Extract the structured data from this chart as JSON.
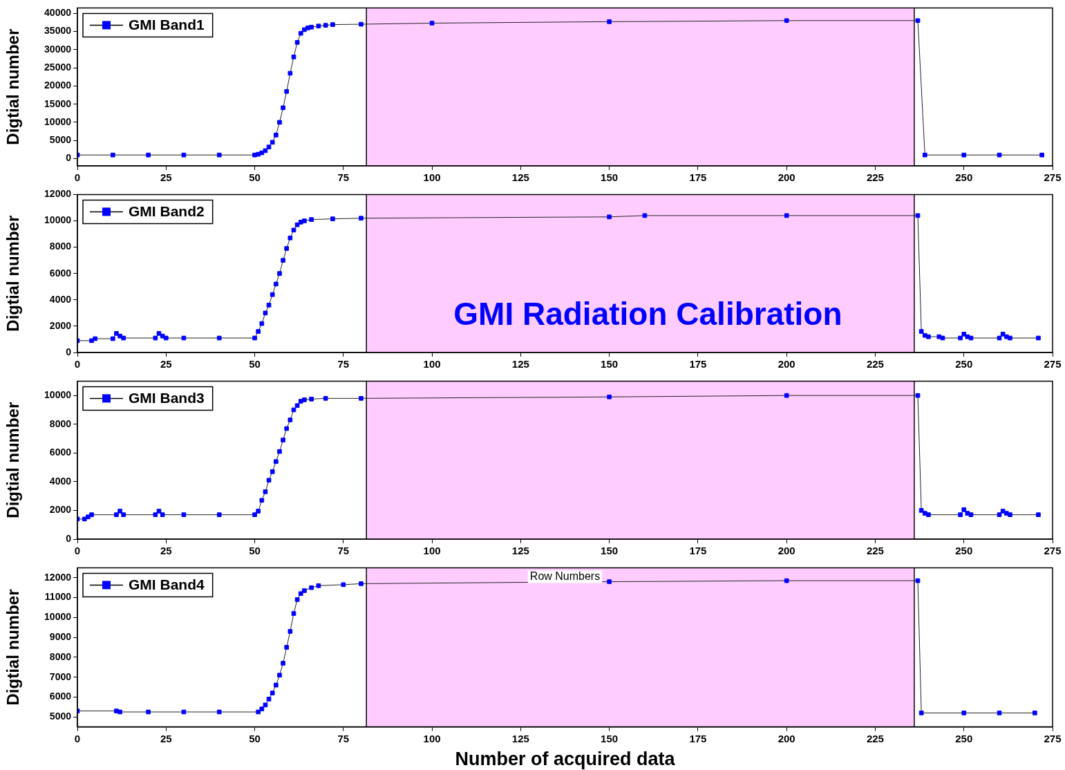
{
  "chart_data": [
    {
      "type": "line",
      "ylabel": "Digtial number",
      "xlim": [
        0,
        275
      ],
      "xticks": [
        0,
        25,
        50,
        75,
        100,
        125,
        150,
        175,
        200,
        225,
        250,
        275
      ],
      "ylim": [
        -2000,
        41500
      ],
      "yticks": [
        0,
        5000,
        10000,
        15000,
        20000,
        25000,
        30000,
        35000,
        40000
      ],
      "legend": "top left",
      "marker": "square",
      "line_style": "solid",
      "grid": false,
      "bands": [
        {
          "axis": "x",
          "from": 81.5,
          "to": 236,
          "color": "#ff66ff"
        }
      ],
      "ref_lines": [
        {
          "axis": "x",
          "value": 81.5,
          "color": "#000000"
        },
        {
          "axis": "x",
          "value": 236,
          "color": "#000000"
        }
      ],
      "series": [
        {
          "name": "GMI Band1",
          "color": "#0000ff",
          "x": [
            0,
            10,
            20,
            30,
            40,
            50,
            51,
            52,
            53,
            54,
            55,
            56,
            57,
            58,
            59,
            60,
            61,
            62,
            63,
            64,
            65,
            66,
            68,
            70,
            72,
            80,
            100,
            150,
            200,
            237,
            239,
            250,
            260,
            272
          ],
          "values": [
            1000,
            1000,
            1000,
            1000,
            1000,
            1000,
            1200,
            1600,
            2200,
            3200,
            4500,
            6500,
            10000,
            14000,
            18500,
            23500,
            28000,
            32000,
            34500,
            35500,
            36000,
            36200,
            36500,
            36700,
            36900,
            37000,
            37300,
            37700,
            38000,
            38000,
            1000,
            1000,
            1000,
            1000
          ]
        }
      ]
    },
    {
      "type": "line",
      "ylabel": "Digtial number",
      "xlim": [
        0,
        275
      ],
      "xticks": [
        0,
        25,
        50,
        75,
        100,
        125,
        150,
        175,
        200,
        225,
        250,
        275
      ],
      "ylim": [
        0,
        12000
      ],
      "yticks": [
        0,
        2000,
        4000,
        6000,
        8000,
        10000,
        12000
      ],
      "legend": "top left",
      "marker": "square",
      "line_style": "solid",
      "grid": false,
      "bands": [
        {
          "axis": "x",
          "from": 81.5,
          "to": 236,
          "color": "#ff66ff"
        }
      ],
      "ref_lines": [
        {
          "axis": "x",
          "value": 81.5,
          "color": "#000000"
        },
        {
          "axis": "x",
          "value": 236,
          "color": "#000000"
        }
      ],
      "annotations": [
        "GMI Radiation Calibration"
      ],
      "series": [
        {
          "name": "GMI Band2",
          "color": "#0000ff",
          "x": [
            0,
            4,
            5,
            10,
            11,
            12,
            13,
            22,
            23,
            24,
            25,
            30,
            40,
            50,
            51,
            52,
            53,
            54,
            55,
            56,
            57,
            58,
            59,
            60,
            61,
            62,
            63,
            64,
            66,
            72,
            80,
            150,
            160,
            200,
            237,
            238,
            239,
            240,
            243,
            244,
            249,
            250,
            251,
            252,
            260,
            261,
            262,
            263,
            271
          ],
          "values": [
            900,
            900,
            1050,
            1050,
            1450,
            1250,
            1100,
            1100,
            1450,
            1250,
            1100,
            1100,
            1100,
            1100,
            1600,
            2200,
            3000,
            3600,
            4400,
            5200,
            6000,
            7000,
            7900,
            8700,
            9300,
            9700,
            9900,
            10000,
            10100,
            10150,
            10200,
            10300,
            10400,
            10400,
            10400,
            1600,
            1300,
            1200,
            1200,
            1100,
            1100,
            1400,
            1200,
            1100,
            1100,
            1400,
            1200,
            1100,
            1100
          ]
        }
      ]
    },
    {
      "type": "line",
      "ylabel": "Digtial number",
      "xlim": [
        0,
        275
      ],
      "xticks": [
        0,
        25,
        50,
        75,
        100,
        125,
        150,
        175,
        200,
        225,
        250,
        275
      ],
      "ylim": [
        0,
        11000
      ],
      "yticks": [
        0,
        2000,
        4000,
        6000,
        8000,
        10000
      ],
      "legend": "top left",
      "marker": "square",
      "line_style": "solid",
      "grid": false,
      "bands": [
        {
          "axis": "x",
          "from": 81.5,
          "to": 236,
          "color": "#ff66ff"
        }
      ],
      "ref_lines": [
        {
          "axis": "x",
          "value": 81.5,
          "color": "#000000"
        },
        {
          "axis": "x",
          "value": 236,
          "color": "#000000"
        }
      ],
      "series": [
        {
          "name": "GMI Band3",
          "color": "#0000ff",
          "x": [
            0,
            2,
            3,
            4,
            11,
            12,
            13,
            22,
            23,
            24,
            30,
            40,
            50,
            51,
            52,
            53,
            54,
            55,
            56,
            57,
            58,
            59,
            60,
            61,
            62,
            63,
            64,
            66,
            70,
            80,
            150,
            200,
            237,
            238,
            239,
            240,
            249,
            250,
            251,
            252,
            260,
            261,
            262,
            263,
            271
          ],
          "values": [
            1400,
            1400,
            1550,
            1700,
            1700,
            1950,
            1700,
            1700,
            1950,
            1700,
            1700,
            1700,
            1700,
            1950,
            2700,
            3300,
            4100,
            4700,
            5400,
            6100,
            6900,
            7700,
            8300,
            9000,
            9300,
            9600,
            9700,
            9750,
            9800,
            9800,
            9900,
            10000,
            10000,
            2000,
            1800,
            1700,
            1700,
            2050,
            1800,
            1700,
            1700,
            1950,
            1800,
            1700,
            1700
          ]
        }
      ]
    },
    {
      "type": "line",
      "ylabel": "Digtial number",
      "xlabel": "Number of acquired data",
      "xlim": [
        0,
        275
      ],
      "xticks": [
        0,
        25,
        50,
        75,
        100,
        125,
        150,
        175,
        200,
        225,
        250,
        275
      ],
      "ylim": [
        4500,
        12500
      ],
      "yticks": [
        5000,
        6000,
        7000,
        8000,
        9000,
        10000,
        11000,
        12000
      ],
      "legend": "top left",
      "marker": "square",
      "line_style": "solid",
      "grid": false,
      "bands": [
        {
          "axis": "x",
          "from": 81.5,
          "to": 236,
          "color": "#ff66ff"
        }
      ],
      "ref_lines": [
        {
          "axis": "x",
          "value": 81.5,
          "color": "#000000"
        },
        {
          "axis": "x",
          "value": 236,
          "color": "#000000"
        }
      ],
      "annotations": [
        "Row Numbers"
      ],
      "series": [
        {
          "name": "GMI Band4",
          "color": "#0000ff",
          "x": [
            0,
            11,
            12,
            20,
            30,
            40,
            51,
            52,
            53,
            54,
            55,
            56,
            57,
            58,
            59,
            60,
            61,
            62,
            63,
            64,
            66,
            68,
            75,
            80,
            150,
            200,
            237,
            238,
            250,
            260,
            270
          ],
          "values": [
            5300,
            5300,
            5250,
            5250,
            5250,
            5250,
            5250,
            5400,
            5600,
            5900,
            6200,
            6600,
            7100,
            7700,
            8500,
            9300,
            10200,
            10900,
            11200,
            11350,
            11500,
            11600,
            11650,
            11700,
            11800,
            11850,
            11850,
            5200,
            5200,
            5200,
            5200
          ]
        }
      ]
    }
  ]
}
